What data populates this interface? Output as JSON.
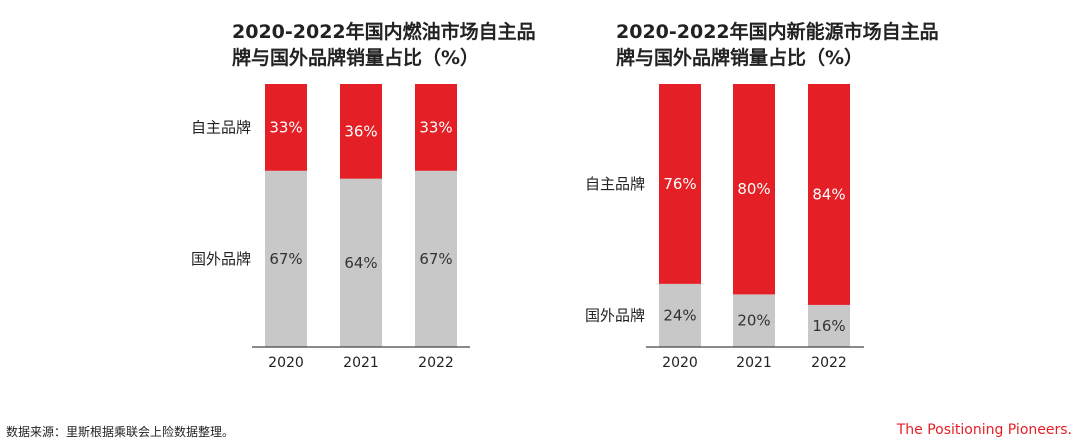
{
  "colors": {
    "domestic": "#e41f25",
    "foreign": "#c8c8c8",
    "label_on_red": "#ffffff",
    "label_on_gray": "#333333"
  },
  "chart_data": [
    {
      "type": "bar",
      "stacked": true,
      "title_lines": [
        "2020-2022年国内燃油市场自主品",
        "牌与国外品牌销量占比（%）"
      ],
      "categories": [
        "2020",
        "2021",
        "2022"
      ],
      "series": [
        {
          "name": "国外品牌",
          "values": [
            67,
            64,
            67
          ]
        },
        {
          "name": "自主品牌",
          "values": [
            33,
            36,
            33
          ]
        }
      ],
      "value_labels": {
        "国外品牌": [
          "67%",
          "64%",
          "67%"
        ],
        "自主品牌": [
          "33%",
          "36%",
          "33%"
        ]
      },
      "ylim": [
        0,
        100
      ],
      "grid": false
    },
    {
      "type": "bar",
      "stacked": true,
      "title_lines": [
        "2020-2022年国内新能源市场自主品",
        "牌与国外品牌销量占比（%）"
      ],
      "categories": [
        "2020",
        "2021",
        "2022"
      ],
      "series": [
        {
          "name": "国外品牌",
          "values": [
            24,
            20,
            16
          ]
        },
        {
          "name": "自主品牌",
          "values": [
            76,
            80,
            84
          ]
        }
      ],
      "value_labels": {
        "国外品牌": [
          "24%",
          "20%",
          "16%"
        ],
        "自主品牌": [
          "76%",
          "80%",
          "84%"
        ]
      },
      "ylim": [
        0,
        100
      ],
      "grid": false
    }
  ],
  "footer": {
    "source": "数据来源：里斯根据乘联会上险数据整理。",
    "brand": "The Positioning Pioneers."
  }
}
